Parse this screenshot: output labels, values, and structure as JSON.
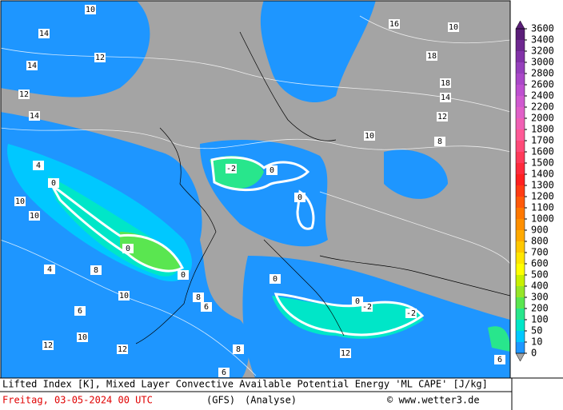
{
  "map": {
    "legend": {
      "levels": [
        3600,
        3400,
        3200,
        3000,
        2800,
        2600,
        2400,
        2200,
        2000,
        1800,
        1700,
        1600,
        1500,
        1400,
        1300,
        1200,
        1100,
        1000,
        900,
        800,
        700,
        600,
        500,
        400,
        300,
        200,
        100,
        50,
        10,
        0
      ],
      "colors": [
        "#5a1e78",
        "#6e2890",
        "#8232a8",
        "#9640bc",
        "#aa48c8",
        "#be50d0",
        "#d05ad0",
        "#e060c8",
        "#f060b4",
        "#ff5a96",
        "#ff4a78",
        "#ff3a5a",
        "#ff2a3c",
        "#ff2020",
        "#ff3c14",
        "#ff5a0a",
        "#ff7800",
        "#ff9000",
        "#ffaa00",
        "#ffc800",
        "#ffe600",
        "#ffff00",
        "#c8f000",
        "#96e628",
        "#5ae650",
        "#28e68c",
        "#00e6c8",
        "#00c8ff",
        "#1e96ff"
      ]
    },
    "labels": [
      10,
      14,
      12,
      14,
      12,
      14,
      4,
      0,
      10,
      10,
      4,
      8,
      12,
      12,
      10,
      8,
      6,
      0,
      0,
      -2,
      0,
      0,
      16,
      10,
      18,
      18,
      12,
      14,
      10,
      8,
      -2,
      -2,
      0,
      0,
      12,
      6,
      8,
      6,
      10,
      6
    ],
    "footer": {
      "title": "Lifted Index [K], Mixed Layer Convective Available Potential Energy 'ML CAPE' [J/kg]",
      "date": "Freitag, 03-05-2024  00 UTC",
      "model": "(GFS)",
      "run": "(Analyse)",
      "copyright": "© www.wetter3.de"
    }
  }
}
